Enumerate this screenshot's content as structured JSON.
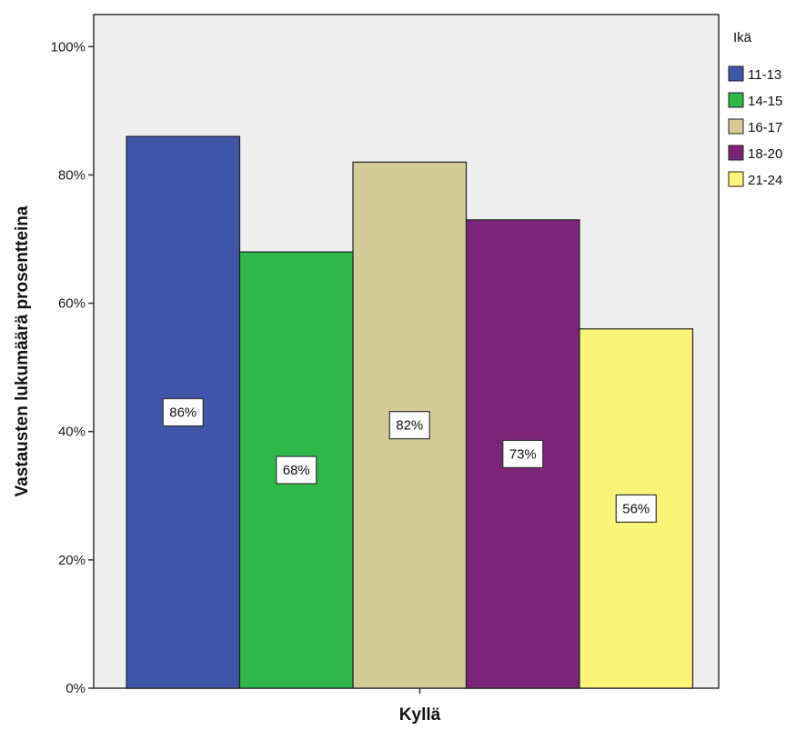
{
  "chart_data": {
    "type": "bar",
    "title": "",
    "xlabel": "",
    "ylabel": "Vastausten lukumäärä prosentteina",
    "categories": [
      "Kyllä"
    ],
    "ylim": [
      0,
      105
    ],
    "yticks": [
      "0%",
      "20%",
      "40%",
      "60%",
      "80%",
      "100%"
    ],
    "ytick_values": [
      0,
      20,
      40,
      60,
      80,
      100
    ],
    "grid": false,
    "legend_position": "right",
    "legend_title": "Ikä",
    "series": [
      {
        "name": "11-13",
        "values": [
          86
        ],
        "label": "86%",
        "color": "#3f56a8"
      },
      {
        "name": "14-15",
        "values": [
          68
        ],
        "label": "68%",
        "color": "#2fb84a"
      },
      {
        "name": "16-17",
        "values": [
          82
        ],
        "label": "82%",
        "color": "#d3cb98"
      },
      {
        "name": "18-20",
        "values": [
          73
        ],
        "label": "73%",
        "color": "#7b2478"
      },
      {
        "name": "21-24",
        "values": [
          56
        ],
        "label": "56%",
        "color": "#faf578"
      }
    ],
    "plot_background": "#efefef"
  }
}
